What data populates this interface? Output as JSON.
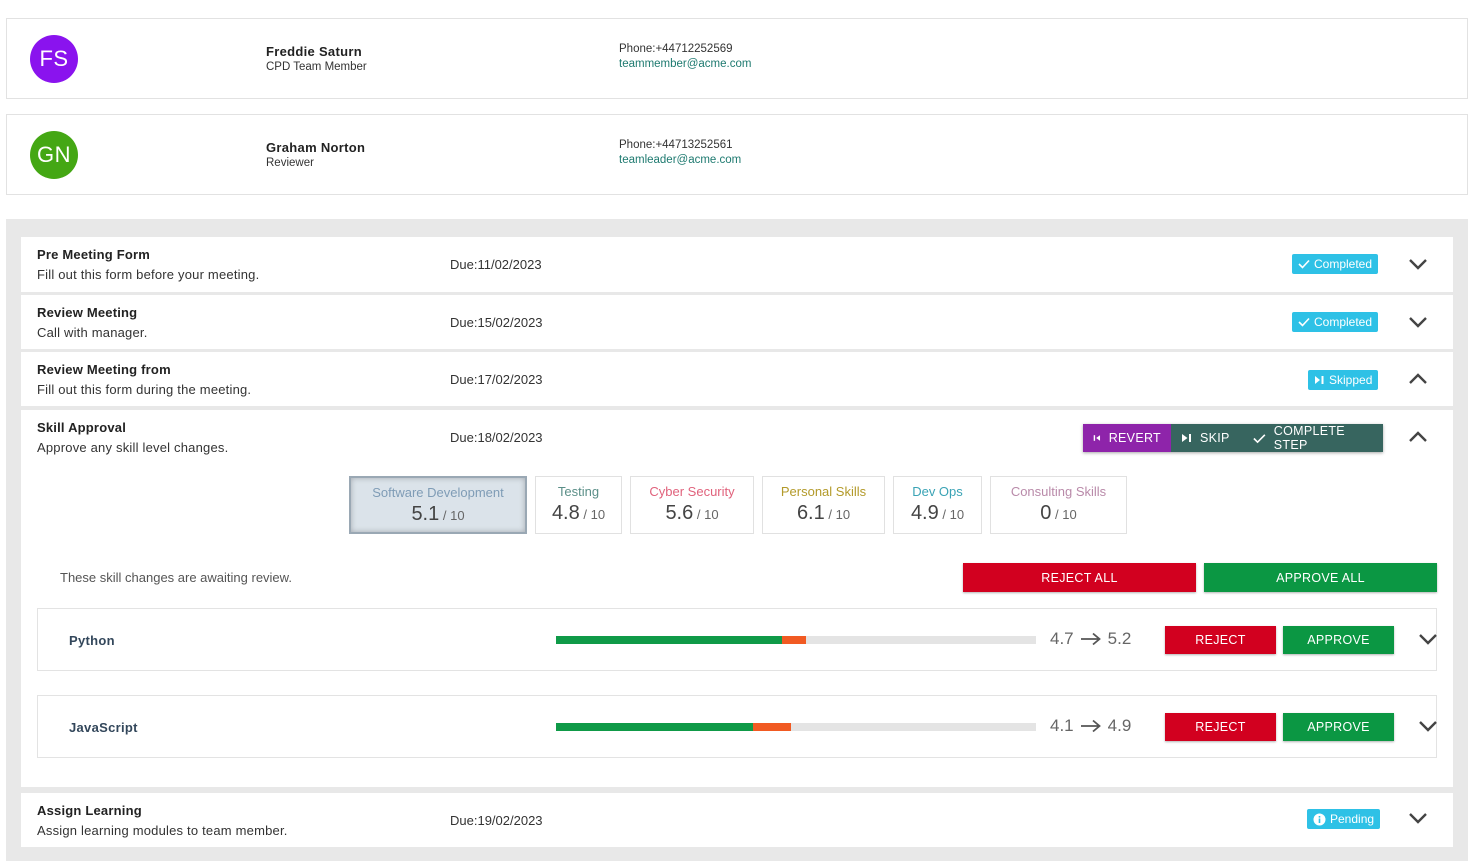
{
  "contacts": [
    {
      "initials": "FS",
      "name": "Freddie Saturn",
      "role": "CPD Team Member",
      "phone": "Phone:+44712252569",
      "email": "teammember@acme.com",
      "avatar_color": "#8a13ee"
    },
    {
      "initials": "GN",
      "name": "Graham Norton",
      "role": "Reviewer",
      "phone": "Phone:+44713252561",
      "email": "teamleader@acme.com",
      "avatar_color": "#44a714"
    }
  ],
  "steps": [
    {
      "title": "Pre Meeting Form",
      "description": "Fill out this form before your meeting.",
      "due": "Due:11/02/2023",
      "status": "Completed",
      "status_icon": "check-icon",
      "expanded": false
    },
    {
      "title": "Review Meeting",
      "description": "Call with manager.",
      "due": "Due:15/02/2023",
      "status": "Completed",
      "status_icon": "check-icon",
      "expanded": false
    },
    {
      "title": "Review Meeting from",
      "description": "Fill out this form during the meeting.",
      "due": "Due:17/02/2023",
      "status": "Skipped",
      "status_icon": "skip-icon",
      "expanded": true
    },
    {
      "title": "Skill Approval",
      "description": "Approve any skill level changes.",
      "due": "Due:18/02/2023",
      "expanded": true
    },
    {
      "title": "Assign Learning",
      "description": "Assign learning modules to team member.",
      "due": "Due:19/02/2023",
      "status": "Pending",
      "status_icon": "info-icon",
      "expanded": false
    }
  ],
  "step_actions": {
    "revert": "REVERT",
    "skip": "SKIP",
    "complete": "COMPLETE STEP"
  },
  "skill_tiles": [
    {
      "name": "Software Development",
      "value": "5.1",
      "of": " / 10",
      "color": "#7f9cb6",
      "active": true
    },
    {
      "name": "Testing",
      "value": "4.8",
      "of": " / 10",
      "color": "#5b8f88",
      "active": false
    },
    {
      "name": "Cyber Security",
      "value": "5.6",
      "of": " / 10",
      "color": "#e0627c",
      "active": false
    },
    {
      "name": "Personal Skills",
      "value": "6.1",
      "of": " / 10",
      "color": "#b39a2a",
      "active": false
    },
    {
      "name": "Dev Ops",
      "value": "4.9",
      "of": " / 10",
      "color": "#3aa3b5",
      "active": false
    },
    {
      "name": "Consulting Skills",
      "value": "0",
      "of": " / 10",
      "color": "#b98aa9",
      "active": false
    }
  ],
  "review": {
    "message": "These skill changes are awaiting review.",
    "reject_all": "REJECT ALL",
    "approve_all": "APPROVE ALL"
  },
  "skill_changes": [
    {
      "name": "Python",
      "from": "4.7",
      "to": "5.2",
      "from_value": 4.7,
      "to_value": 5.2,
      "reject": "REJECT",
      "approve": "APPROVE"
    },
    {
      "name": "JavaScript",
      "from": "4.1",
      "to": "4.9",
      "from_value": 4.1,
      "to_value": 4.9,
      "reject": "REJECT",
      "approve": "APPROVE"
    }
  ],
  "colors": {
    "completed_badge": "#2ec1e6",
    "revert": "#8e24aa",
    "skip": "#37655f",
    "reject": "#d2001f",
    "approve": "#0b9743",
    "progress_current": "#0f9a48",
    "progress_increase": "#f15a22"
  }
}
